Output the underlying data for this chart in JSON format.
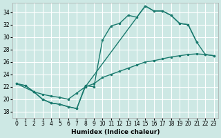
{
  "xlabel": "Humidex (Indice chaleur)",
  "bg_color": "#cde8e4",
  "grid_color": "#ffffff",
  "line_color": "#1a7a6e",
  "xlim": [
    -0.5,
    23.5
  ],
  "ylim": [
    17.0,
    35.5
  ],
  "xticks": [
    0,
    1,
    2,
    3,
    4,
    5,
    6,
    7,
    8,
    9,
    10,
    11,
    12,
    13,
    14,
    15,
    16,
    17,
    18,
    19,
    20,
    21,
    22,
    23
  ],
  "yticks": [
    18,
    20,
    22,
    24,
    26,
    28,
    30,
    32,
    34
  ],
  "line1_x": [
    0,
    1,
    2,
    3,
    4,
    5,
    6,
    7,
    8,
    9,
    10,
    11,
    12,
    13,
    14,
    15,
    16,
    17,
    18,
    19,
    20,
    21
  ],
  "line1_y": [
    22.5,
    22.2,
    21.2,
    20.0,
    19.4,
    19.2,
    18.8,
    18.5,
    22.2,
    22.0,
    29.5,
    31.8,
    32.2,
    33.5,
    33.2,
    35.0,
    34.2,
    34.2,
    33.5,
    32.2,
    32.0,
    29.2
  ],
  "line2_x": [
    0,
    2,
    3,
    4,
    5,
    6,
    7,
    8,
    15,
    16,
    17,
    18,
    19,
    20,
    21,
    22,
    23
  ],
  "line2_y": [
    22.5,
    21.2,
    20.0,
    19.4,
    19.2,
    18.8,
    18.5,
    22.0,
    35.0,
    34.2,
    34.2,
    33.5,
    32.2,
    32.0,
    29.2,
    27.2,
    27.0
  ],
  "line3_x": [
    0,
    1,
    2,
    3,
    4,
    5,
    6,
    7,
    8,
    9,
    10,
    11,
    12,
    13,
    14,
    15,
    16,
    17,
    18,
    19,
    20,
    21,
    22,
    23
  ],
  "line3_y": [
    22.5,
    22.2,
    21.2,
    20.8,
    20.5,
    20.3,
    20.0,
    21.0,
    22.0,
    22.5,
    23.5,
    24.0,
    24.5,
    25.0,
    25.5,
    26.0,
    26.2,
    26.5,
    26.8,
    27.0,
    27.2,
    27.3,
    27.2,
    27.0
  ],
  "markersize": 3,
  "linewidth": 1.0
}
